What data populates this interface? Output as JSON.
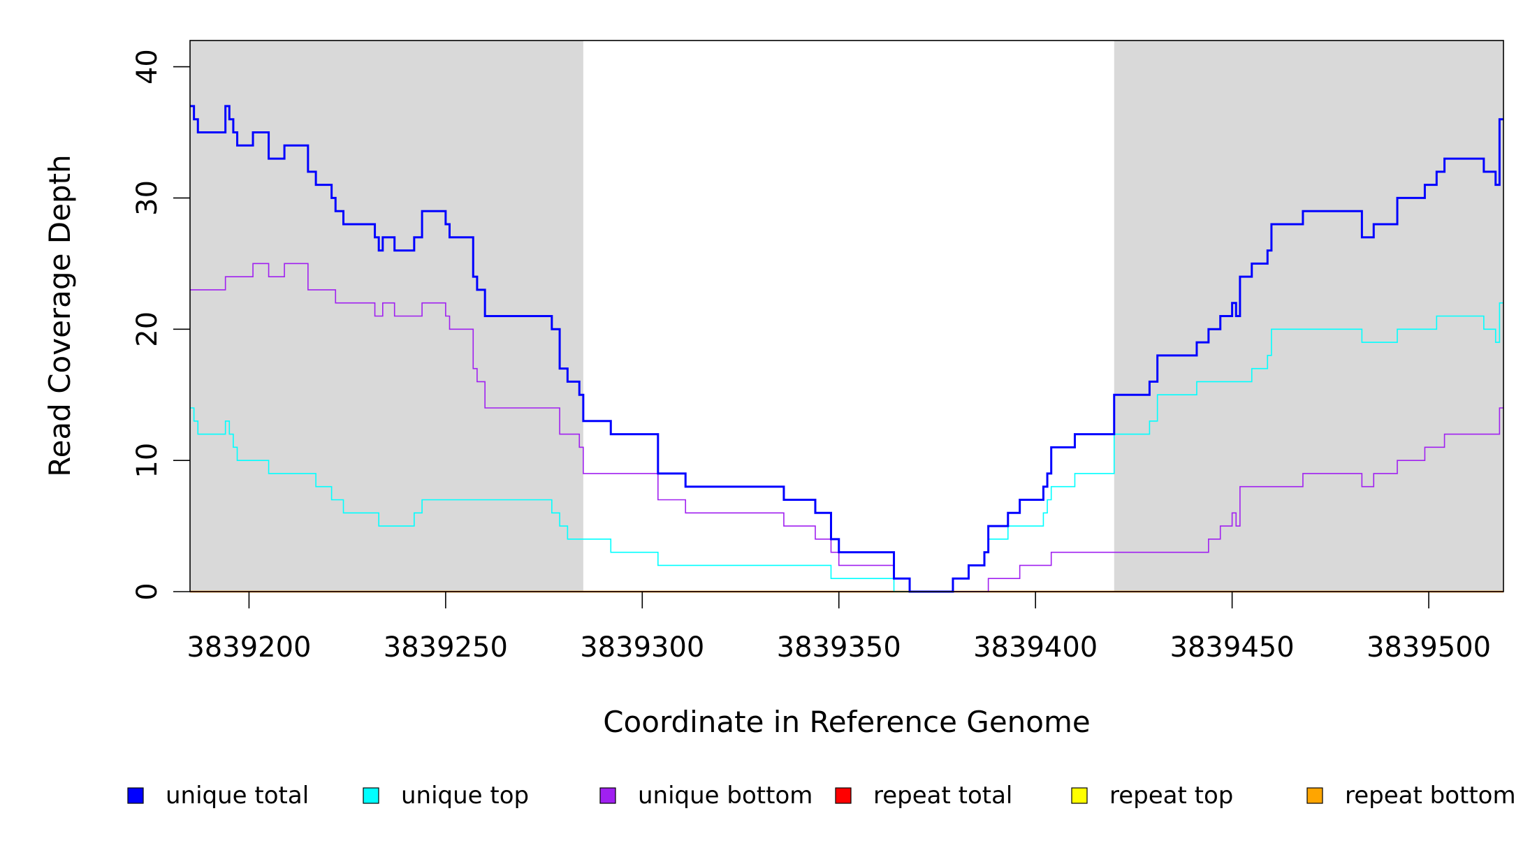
{
  "chart_data": {
    "type": "line",
    "step": true,
    "title": "",
    "xlabel": "Coordinate in Reference Genome",
    "ylabel": "Read Coverage Depth",
    "xlim": [
      3839185,
      3839519
    ],
    "ylim": [
      0,
      42
    ],
    "x_ticks": [
      3839200,
      3839250,
      3839300,
      3839350,
      3839400,
      3839450,
      3839500
    ],
    "x_tick_labels": [
      "3839200",
      "3839250",
      "3839300",
      "3839350",
      "3839400",
      "3839450",
      "3839500"
    ],
    "y_ticks": [
      0,
      10,
      20,
      30,
      40
    ],
    "y_tick_labels": [
      "0",
      "10",
      "20",
      "30",
      "40"
    ],
    "shaded_regions": [
      [
        3839185,
        3839285
      ],
      [
        3839420,
        3839519
      ]
    ],
    "shade_color": "#d9d9d9",
    "legend_placement": "bottom",
    "series": [
      {
        "name": "unique total",
        "color": "#0000ff",
        "width": 3,
        "steps": [
          [
            3839185,
            37
          ],
          [
            3839186,
            36
          ],
          [
            3839187,
            35
          ],
          [
            3839194,
            37
          ],
          [
            3839195,
            36
          ],
          [
            3839196,
            35
          ],
          [
            3839197,
            34
          ],
          [
            3839201,
            35
          ],
          [
            3839205,
            33
          ],
          [
            3839209,
            34
          ],
          [
            3839215,
            32
          ],
          [
            3839217,
            31
          ],
          [
            3839221,
            30
          ],
          [
            3839222,
            29
          ],
          [
            3839224,
            28
          ],
          [
            3839232,
            27
          ],
          [
            3839233,
            26
          ],
          [
            3839234,
            27
          ],
          [
            3839237,
            26
          ],
          [
            3839242,
            27
          ],
          [
            3839244,
            29
          ],
          [
            3839250,
            28
          ],
          [
            3839251,
            27
          ],
          [
            3839257,
            24
          ],
          [
            3839258,
            23
          ],
          [
            3839260,
            21
          ],
          [
            3839277,
            20
          ],
          [
            3839279,
            17
          ],
          [
            3839281,
            16
          ],
          [
            3839284,
            15
          ],
          [
            3839285,
            13
          ],
          [
            3839292,
            12
          ],
          [
            3839304,
            9
          ],
          [
            3839311,
            8
          ],
          [
            3839336,
            7
          ],
          [
            3839344,
            6
          ],
          [
            3839348,
            4
          ],
          [
            3839350,
            3
          ],
          [
            3839364,
            1
          ],
          [
            3839368,
            0
          ],
          [
            3839379,
            1
          ],
          [
            3839383,
            2
          ],
          [
            3839387,
            3
          ],
          [
            3839388,
            5
          ],
          [
            3839393,
            6
          ],
          [
            3839396,
            7
          ],
          [
            3839402,
            8
          ],
          [
            3839403,
            9
          ],
          [
            3839404,
            11
          ],
          [
            3839410,
            12
          ],
          [
            3839420,
            15
          ],
          [
            3839429,
            16
          ],
          [
            3839431,
            18
          ],
          [
            3839441,
            19
          ],
          [
            3839444,
            20
          ],
          [
            3839447,
            21
          ],
          [
            3839450,
            22
          ],
          [
            3839451,
            21
          ],
          [
            3839452,
            24
          ],
          [
            3839455,
            25
          ],
          [
            3839459,
            26
          ],
          [
            3839460,
            28
          ],
          [
            3839468,
            29
          ],
          [
            3839483,
            27
          ],
          [
            3839486,
            28
          ],
          [
            3839492,
            30
          ],
          [
            3839499,
            31
          ],
          [
            3839502,
            32
          ],
          [
            3839504,
            33
          ],
          [
            3839514,
            32
          ],
          [
            3839517,
            31
          ],
          [
            3839518,
            36
          ]
        ]
      },
      {
        "name": "unique top",
        "color": "#00ffff",
        "width": 1.6,
        "steps": [
          [
            3839185,
            14
          ],
          [
            3839186,
            13
          ],
          [
            3839187,
            12
          ],
          [
            3839194,
            13
          ],
          [
            3839195,
            12
          ],
          [
            3839196,
            11
          ],
          [
            3839197,
            10
          ],
          [
            3839205,
            9
          ],
          [
            3839217,
            8
          ],
          [
            3839221,
            7
          ],
          [
            3839224,
            6
          ],
          [
            3839233,
            5
          ],
          [
            3839242,
            6
          ],
          [
            3839244,
            7
          ],
          [
            3839277,
            6
          ],
          [
            3839279,
            5
          ],
          [
            3839281,
            4
          ],
          [
            3839292,
            3
          ],
          [
            3839304,
            2
          ],
          [
            3839348,
            1
          ],
          [
            3839364,
            0
          ],
          [
            3839379,
            1
          ],
          [
            3839383,
            2
          ],
          [
            3839387,
            3
          ],
          [
            3839388,
            4
          ],
          [
            3839393,
            5
          ],
          [
            3839402,
            6
          ],
          [
            3839403,
            7
          ],
          [
            3839404,
            8
          ],
          [
            3839410,
            9
          ],
          [
            3839420,
            12
          ],
          [
            3839429,
            13
          ],
          [
            3839431,
            15
          ],
          [
            3839441,
            16
          ],
          [
            3839455,
            17
          ],
          [
            3839459,
            18
          ],
          [
            3839460,
            20
          ],
          [
            3839483,
            19
          ],
          [
            3839492,
            20
          ],
          [
            3839502,
            21
          ],
          [
            3839514,
            20
          ],
          [
            3839517,
            19
          ],
          [
            3839518,
            22
          ]
        ]
      },
      {
        "name": "unique bottom",
        "color": "#a020f0",
        "width": 1.6,
        "steps": [
          [
            3839185,
            23
          ],
          [
            3839194,
            24
          ],
          [
            3839201,
            25
          ],
          [
            3839205,
            24
          ],
          [
            3839209,
            25
          ],
          [
            3839215,
            23
          ],
          [
            3839222,
            22
          ],
          [
            3839232,
            21
          ],
          [
            3839234,
            22
          ],
          [
            3839237,
            21
          ],
          [
            3839244,
            22
          ],
          [
            3839250,
            21
          ],
          [
            3839251,
            20
          ],
          [
            3839257,
            17
          ],
          [
            3839258,
            16
          ],
          [
            3839260,
            14
          ],
          [
            3839279,
            12
          ],
          [
            3839284,
            11
          ],
          [
            3839285,
            9
          ],
          [
            3839304,
            7
          ],
          [
            3839311,
            6
          ],
          [
            3839336,
            5
          ],
          [
            3839344,
            4
          ],
          [
            3839348,
            3
          ],
          [
            3839350,
            2
          ],
          [
            3839364,
            1
          ],
          [
            3839368,
            0
          ],
          [
            3839388,
            1
          ],
          [
            3839396,
            2
          ],
          [
            3839404,
            3
          ],
          [
            3839444,
            4
          ],
          [
            3839447,
            5
          ],
          [
            3839450,
            6
          ],
          [
            3839451,
            5
          ],
          [
            3839452,
            8
          ],
          [
            3839468,
            9
          ],
          [
            3839483,
            8
          ],
          [
            3839486,
            9
          ],
          [
            3839492,
            10
          ],
          [
            3839499,
            11
          ],
          [
            3839504,
            12
          ],
          [
            3839518,
            14
          ]
        ]
      },
      {
        "name": "repeat total",
        "color": "#ff0000",
        "width": 1.6,
        "steps": [
          [
            3839185,
            0
          ]
        ]
      },
      {
        "name": "repeat top",
        "color": "#ffff00",
        "width": 1.6,
        "steps": [
          [
            3839185,
            0
          ]
        ]
      },
      {
        "name": "repeat bottom",
        "color": "#ffa500",
        "width": 2.5,
        "steps": [
          [
            3839185,
            0
          ]
        ]
      }
    ]
  }
}
